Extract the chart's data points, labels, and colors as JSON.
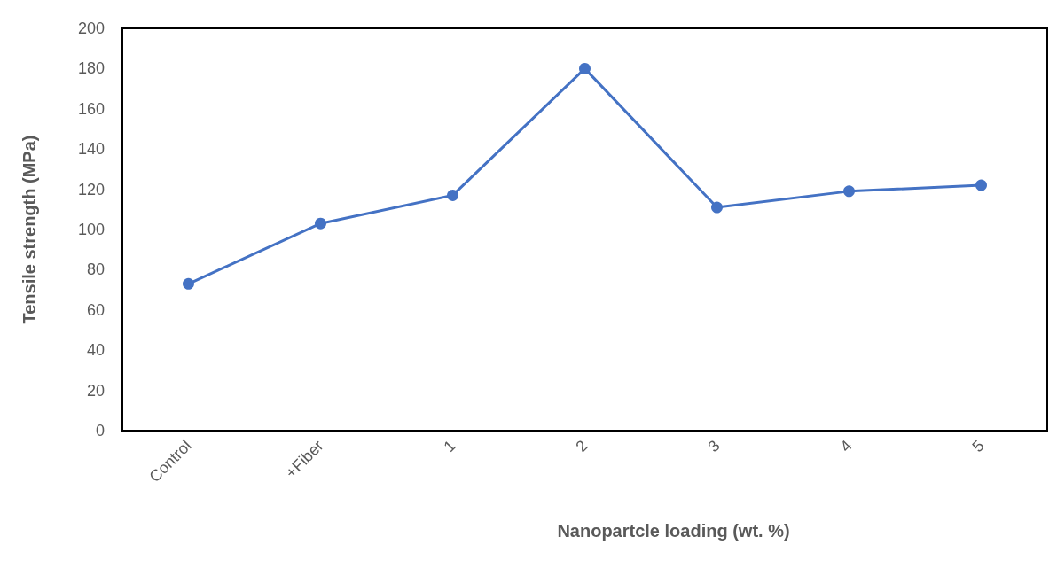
{
  "chart_data": {
    "type": "line",
    "xlabel": "Nanopartcle loading (wt. %)",
    "ylabel": "Tensile strength (MPa)",
    "categories": [
      "Control",
      "+Fiber",
      "1",
      "2",
      "3",
      "4",
      "5"
    ],
    "values": [
      73,
      103,
      117,
      180,
      111,
      119,
      122
    ],
    "color": "#4472c4",
    "ylim": [
      0,
      200
    ],
    "yticks": [
      0,
      20,
      40,
      60,
      80,
      100,
      120,
      140,
      160,
      180,
      200
    ],
    "grid": false,
    "marker": "circle",
    "line_style": "solid"
  }
}
